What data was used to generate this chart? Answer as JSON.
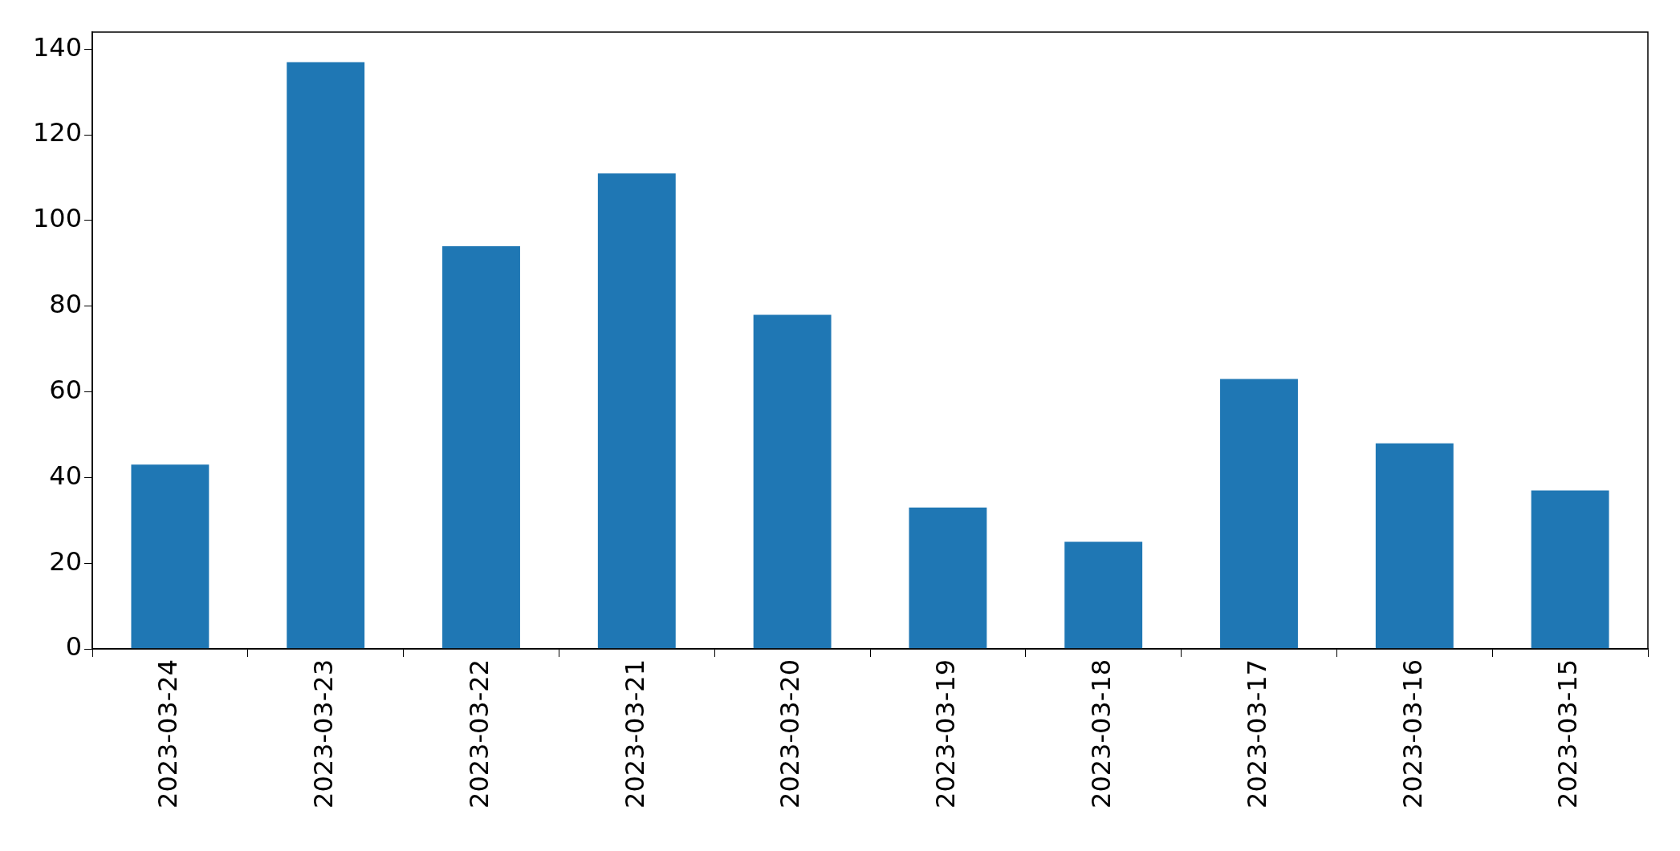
{
  "chart_data": {
    "type": "bar",
    "categories": [
      "2023-03-24",
      "2023-03-23",
      "2023-03-22",
      "2023-03-21",
      "2023-03-20",
      "2023-03-19",
      "2023-03-18",
      "2023-03-17",
      "2023-03-16",
      "2023-03-15"
    ],
    "values": [
      43,
      137,
      94,
      111,
      78,
      33,
      25,
      63,
      48,
      37
    ],
    "color": "#1f77b4",
    "ylim": [
      0,
      144
    ],
    "yticks": [
      0,
      20,
      40,
      60,
      80,
      100,
      120,
      140
    ],
    "grid": false,
    "legend": false
  }
}
